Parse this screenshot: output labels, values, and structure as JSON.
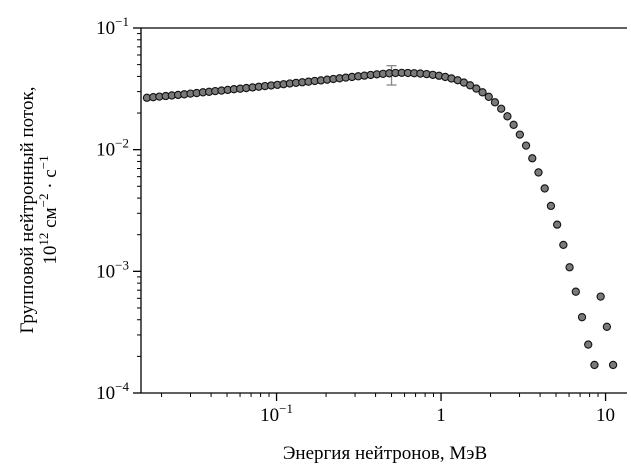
{
  "chart_data": {
    "type": "scatter",
    "xlabel": "Энергия нейтронов, МэВ",
    "ylabel_line1": "Групповой нейтронный поток,",
    "ylabel_line2": {
      "base": "10",
      "exp1": "12",
      "mid": " см",
      "exp2": "−2",
      "mid2": " · с",
      "exp3": "−1"
    },
    "x_scale": "log",
    "y_scale": "log",
    "xlim": [
      0.015,
      13.5
    ],
    "ylim": [
      0.0001,
      0.1
    ],
    "x_ticks": [
      {
        "value": 0.1,
        "base": "10",
        "exp": "−1"
      },
      {
        "value": 1,
        "base": "1",
        "exp": ""
      },
      {
        "value": 10,
        "base": "10",
        "exp": ""
      }
    ],
    "y_ticks": [
      {
        "value": 0.0001,
        "base": "10",
        "exp": "−4"
      },
      {
        "value": 0.001,
        "base": "10",
        "exp": "−3"
      },
      {
        "value": 0.01,
        "base": "10",
        "exp": "−2"
      },
      {
        "value": 0.1,
        "base": "10",
        "exp": "−1"
      }
    ],
    "grid": false,
    "marker_color": "#7a7a7a",
    "marker_edge": "#111111",
    "errorbar_color": "#888888",
    "error_bar": {
      "x": 0.5,
      "y_low": 0.034,
      "y_high": 0.049
    },
    "points": [
      [
        0.0163,
        0.0267
      ],
      [
        0.0178,
        0.027
      ],
      [
        0.0194,
        0.0273
      ],
      [
        0.0212,
        0.0276
      ],
      [
        0.0231,
        0.0279
      ],
      [
        0.0252,
        0.0282
      ],
      [
        0.0275,
        0.0285
      ],
      [
        0.03,
        0.0289
      ],
      [
        0.0327,
        0.0292
      ],
      [
        0.0357,
        0.0296
      ],
      [
        0.0389,
        0.0299
      ],
      [
        0.0424,
        0.0303
      ],
      [
        0.0463,
        0.0306
      ],
      [
        0.0505,
        0.031
      ],
      [
        0.0551,
        0.0314
      ],
      [
        0.0601,
        0.0317
      ],
      [
        0.0655,
        0.0321
      ],
      [
        0.0715,
        0.0325
      ],
      [
        0.078,
        0.0329
      ],
      [
        0.0851,
        0.0333
      ],
      [
        0.0928,
        0.0337
      ],
      [
        0.1012,
        0.0341
      ],
      [
        0.1104,
        0.0345
      ],
      [
        0.1205,
        0.035
      ],
      [
        0.1314,
        0.0354
      ],
      [
        0.1434,
        0.0358
      ],
      [
        0.1564,
        0.0362
      ],
      [
        0.1706,
        0.0367
      ],
      [
        0.1861,
        0.0371
      ],
      [
        0.2031,
        0.0376
      ],
      [
        0.2215,
        0.0381
      ],
      [
        0.2416,
        0.0386
      ],
      [
        0.2636,
        0.0391
      ],
      [
        0.2876,
        0.0396
      ],
      [
        0.3137,
        0.0401
      ],
      [
        0.3422,
        0.0406
      ],
      [
        0.3733,
        0.0411
      ],
      [
        0.4073,
        0.0416
      ],
      [
        0.4443,
        0.042
      ],
      [
        0.4847,
        0.0424
      ],
      [
        0.5287,
        0.0427
      ],
      [
        0.5768,
        0.0428
      ],
      [
        0.6292,
        0.0427
      ],
      [
        0.6864,
        0.0425
      ],
      [
        0.7488,
        0.0422
      ],
      [
        0.8169,
        0.0418
      ],
      [
        0.8912,
        0.0412
      ],
      [
        0.9722,
        0.0405
      ],
      [
        1.0605,
        0.0396
      ],
      [
        1.1569,
        0.0385
      ],
      [
        1.2621,
        0.0372
      ],
      [
        1.3768,
        0.0356
      ],
      [
        1.502,
        0.0338
      ],
      [
        1.6385,
        0.0318
      ],
      [
        1.7875,
        0.0296
      ],
      [
        1.95,
        0.0272
      ],
      [
        2.1272,
        0.0245
      ],
      [
        2.3206,
        0.0217
      ],
      [
        2.5316,
        0.0188
      ],
      [
        2.7617,
        0.016
      ],
      [
        3.0128,
        0.0133
      ],
      [
        3.2867,
        0.0108
      ],
      [
        3.5855,
        0.0085
      ],
      [
        3.9114,
        0.0065
      ],
      [
        4.267,
        0.0048
      ],
      [
        4.6549,
        0.00345
      ],
      [
        5.0781,
        0.00242
      ],
      [
        5.5398,
        0.00165
      ],
      [
        6.0434,
        0.00108
      ],
      [
        6.5928,
        0.00068
      ],
      [
        7.1922,
        0.00042
      ],
      [
        7.846,
        0.00025
      ],
      [
        8.5593,
        0.00017
      ],
      [
        9.3374,
        0.00062
      ],
      [
        10.186,
        0.00035
      ],
      [
        11.112,
        0.00017
      ]
    ]
  }
}
